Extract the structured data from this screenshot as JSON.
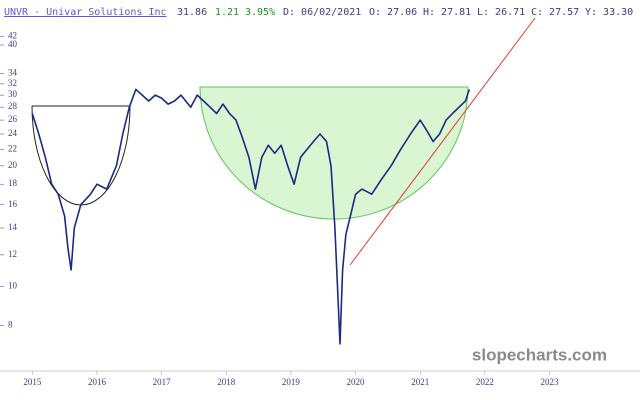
{
  "chart_data": {
    "type": "line",
    "title": "UNVR - Univar Solutions Inc",
    "quote": {
      "last": "31.86",
      "change": "1.21",
      "change_pct": "3.95%",
      "date": "D: 06/02/2021",
      "open": "O: 27.06",
      "high": "H: 27.81",
      "low": "L: 26.71",
      "close": "C: 27.57",
      "year_high": "Y: 33.30"
    },
    "watermark": "slopecharts.com",
    "log_scale": true,
    "color": "#1c2a86",
    "xlim": [
      2014.5,
      2024.4
    ],
    "xticks": [
      2015,
      2016,
      2017,
      2018,
      2019,
      2020,
      2021,
      2022,
      2023
    ],
    "ylim": [
      6.2,
      44.6
    ],
    "yticks": [
      42,
      40,
      34,
      32,
      30,
      28,
      26,
      24,
      22,
      20,
      18,
      16,
      14,
      12,
      10,
      8
    ],
    "x": [
      2015.0,
      2015.1,
      2015.2,
      2015.3,
      2015.4,
      2015.5,
      2015.55,
      2015.6,
      2015.65,
      2015.75,
      2015.9,
      2016.0,
      2016.15,
      2016.3,
      2016.4,
      2016.5,
      2016.6,
      2016.7,
      2016.8,
      2016.9,
      2017.0,
      2017.1,
      2017.2,
      2017.3,
      2017.45,
      2017.55,
      2017.65,
      2017.75,
      2017.85,
      2017.95,
      2018.05,
      2018.15,
      2018.25,
      2018.35,
      2018.45,
      2018.55,
      2018.65,
      2018.75,
      2018.85,
      2018.95,
      2019.05,
      2019.15,
      2019.25,
      2019.35,
      2019.45,
      2019.55,
      2019.62,
      2019.68,
      2019.72,
      2019.76,
      2019.8,
      2019.85,
      2019.92,
      2020.0,
      2020.1,
      2020.25,
      2020.4,
      2020.55,
      2020.7,
      2020.85,
      2021.0,
      2021.1,
      2021.2,
      2021.3,
      2021.4,
      2021.5,
      2021.6,
      2021.7,
      2021.76
    ],
    "values": [
      27,
      24,
      21,
      18,
      17,
      15,
      12.5,
      11,
      14,
      16,
      17,
      18,
      17.5,
      20,
      24,
      28,
      31,
      30,
      29,
      30,
      29.5,
      28.5,
      29,
      30,
      28,
      30,
      29,
      28,
      27,
      28.5,
      27,
      26,
      23.5,
      21,
      17.5,
      21,
      22.5,
      21.5,
      22.5,
      20,
      18,
      21,
      22,
      23,
      24,
      23,
      20,
      14,
      10,
      7.2,
      11,
      13.5,
      15,
      17,
      17.5,
      17,
      18.5,
      20,
      22,
      24,
      26,
      24.5,
      23,
      24,
      26,
      27,
      28,
      29,
      31
    ]
  }
}
